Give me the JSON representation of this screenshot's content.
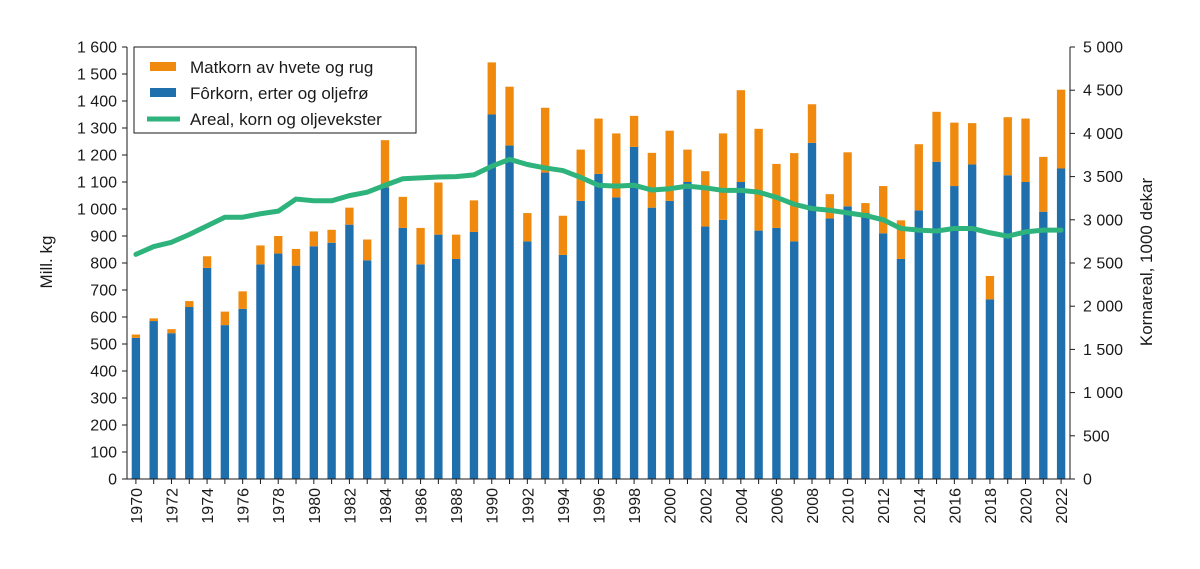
{
  "chart_data": {
    "type": "bar",
    "stacked": true,
    "categories": [
      "1970",
      "1971",
      "1972",
      "1973",
      "1974",
      "1975",
      "1976",
      "1977",
      "1978",
      "1979",
      "1980",
      "1981",
      "1982",
      "1983",
      "1984",
      "1985",
      "1986",
      "1987",
      "1988",
      "1989",
      "1990",
      "1991",
      "1992",
      "1993",
      "1994",
      "1995",
      "1996",
      "1997",
      "1998",
      "1999",
      "2000",
      "2001",
      "2002",
      "2003",
      "2004",
      "2005",
      "2006",
      "2007",
      "2008",
      "2009",
      "2010",
      "2011",
      "2012",
      "2013",
      "2014",
      "2015",
      "2016",
      "2017",
      "2018",
      "2019",
      "2020",
      "2021",
      "2022"
    ],
    "x_tick_labels": [
      "1970",
      "1972",
      "1974",
      "1976",
      "1978",
      "1980",
      "1982",
      "1984",
      "1986",
      "1988",
      "1990",
      "1992",
      "1994",
      "1996",
      "1998",
      "2000",
      "2002",
      "2004",
      "2006",
      "2008",
      "2010",
      "2012",
      "2014",
      "2016",
      "2018",
      "2020",
      "2022"
    ],
    "series": [
      {
        "name": "Fôrkorn, erter og oljefrø",
        "kind": "bar",
        "axis": "left",
        "color": "#1F6FAD",
        "values": [
          523,
          585,
          540,
          637,
          782,
          570,
          630,
          795,
          835,
          790,
          862,
          875,
          942,
          810,
          1080,
          930,
          795,
          905,
          815,
          915,
          1350,
          1235,
          880,
          1135,
          830,
          1030,
          1130,
          1043,
          1230,
          1005,
          1030,
          1100,
          935,
          960,
          1100,
          920,
          930,
          880,
          1245,
          965,
          1010,
          985,
          910,
          815,
          995,
          1175,
          1085,
          1165,
          665,
          1125,
          1100,
          990,
          1150
        ]
      },
      {
        "name": "Matkorn av hvete og rug",
        "kind": "bar",
        "axis": "left",
        "color": "#F08A0F",
        "values": [
          12,
          10,
          15,
          22,
          43,
          50,
          65,
          70,
          65,
          62,
          55,
          48,
          63,
          77,
          175,
          115,
          135,
          193,
          90,
          117,
          193,
          218,
          105,
          240,
          145,
          190,
          205,
          237,
          115,
          203,
          260,
          120,
          205,
          320,
          340,
          377,
          237,
          327,
          143,
          90,
          200,
          37,
          175,
          143,
          245,
          185,
          235,
          153,
          87,
          215,
          235,
          203,
          292
        ]
      },
      {
        "name": "Areal, korn og oljevekster",
        "kind": "line",
        "axis": "right",
        "color": "#2EB37C",
        "values": [
          2600,
          2690,
          2740,
          2830,
          2930,
          3030,
          3030,
          3070,
          3100,
          3240,
          3220,
          3220,
          3280,
          3320,
          3400,
          3475,
          3485,
          3495,
          3500,
          3520,
          3620,
          3700,
          3640,
          3600,
          3570,
          3490,
          3400,
          3390,
          3400,
          3345,
          3360,
          3390,
          3370,
          3340,
          3340,
          3320,
          3260,
          3180,
          3130,
          3110,
          3080,
          3050,
          3000,
          2900,
          2880,
          2870,
          2900,
          2900,
          2850,
          2810,
          2860,
          2880,
          2880
        ]
      }
    ],
    "title": "",
    "xlabel": "",
    "ylabel": "Mill. kg",
    "y2label": "Kornareal, 1000 dekar",
    "ylim": [
      0,
      1600
    ],
    "y2lim": [
      0,
      5000
    ],
    "y_ticks": [
      0,
      100,
      200,
      300,
      400,
      500,
      600,
      700,
      800,
      900,
      1000,
      1100,
      1200,
      1300,
      1400,
      1500,
      1600
    ],
    "y_tick_labels": [
      "0",
      "100",
      "200",
      "300",
      "400",
      "500",
      "600",
      "700",
      "800",
      "900",
      "1 000",
      "1 100",
      "1 200",
      "1 300",
      "1 400",
      "1 500",
      "1 600"
    ],
    "y2_ticks": [
      0,
      500,
      1000,
      1500,
      2000,
      2500,
      3000,
      3500,
      4000,
      4500,
      5000
    ],
    "y2_tick_labels": [
      "0",
      "500",
      "1 000",
      "1 500",
      "2 000",
      "2 500",
      "3 000",
      "3 500",
      "4 000",
      "4 500",
      "5 000"
    ],
    "legend": {
      "position": "top-left",
      "entries": [
        "Matkorn av hvete og rug",
        "Fôrkorn, erter og oljefrø",
        "Areal, korn og oljevekster"
      ]
    }
  }
}
